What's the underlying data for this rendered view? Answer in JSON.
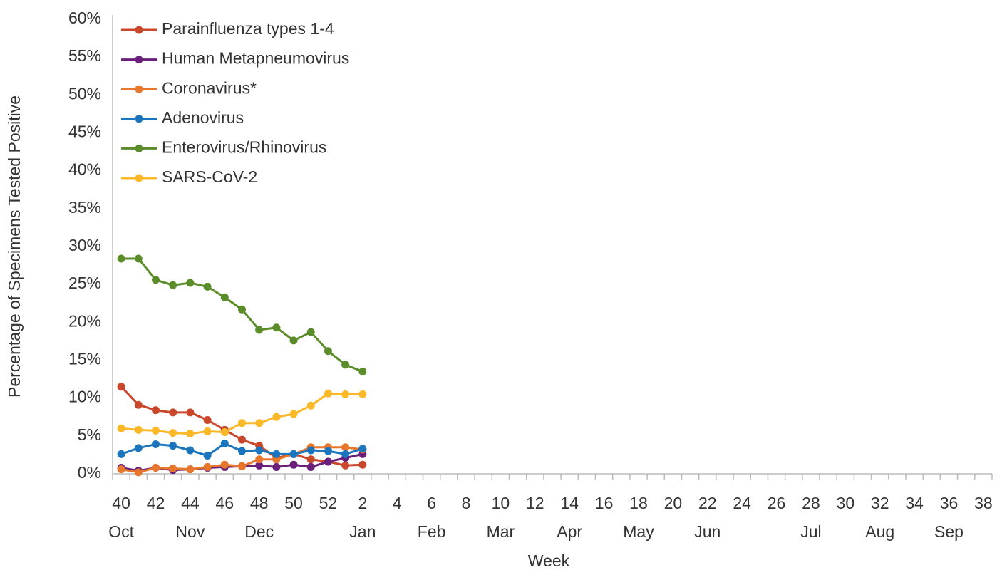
{
  "chart_data": {
    "type": "line",
    "y_axis_label": "Percentage of Specimens Tested Positive",
    "x_axis_label": "Week",
    "categories": [
      "40",
      null,
      "42",
      null,
      "44",
      null,
      "46",
      null,
      "48",
      null,
      "50",
      null,
      "52",
      null,
      "2",
      null,
      "4",
      null,
      "6",
      null,
      "8",
      null,
      "10",
      null,
      "12",
      null,
      "14",
      null,
      "16",
      null,
      "18",
      null,
      "20",
      null,
      "22",
      null,
      "24",
      null,
      "26",
      null,
      "28",
      null,
      "30",
      null,
      "32",
      null,
      "34",
      null,
      "36",
      null,
      "38"
    ],
    "month_categories": [
      "Oct",
      null,
      null,
      null,
      "Nov",
      null,
      null,
      null,
      "Dec",
      null,
      null,
      null,
      null,
      null,
      "Jan",
      null,
      null,
      null,
      "Feb",
      null,
      null,
      null,
      "Mar",
      null,
      null,
      null,
      "Apr",
      null,
      null,
      null,
      "May",
      null,
      null,
      null,
      "Jun",
      null,
      null,
      null,
      null,
      null,
      "Jul",
      null,
      null,
      null,
      "Aug",
      null,
      null,
      null,
      "Sep",
      null,
      null
    ],
    "series": [
      {
        "name": "Parainfluenza types 1-4",
        "color": "#c9472a",
        "values": [
          11.5,
          9.1,
          8.4,
          8.1,
          8.1,
          7.1,
          5.8,
          4.5,
          3.7,
          2.1,
          2.6,
          1.9,
          1.6,
          1.1,
          1.2,
          null,
          null,
          null,
          null,
          null,
          null,
          null,
          null,
          null,
          null,
          null,
          null,
          null,
          null,
          null,
          null,
          null,
          null,
          null,
          null,
          null,
          null,
          null,
          null,
          null,
          null,
          null,
          null,
          null,
          null,
          null,
          null,
          null,
          null,
          null,
          null
        ]
      },
      {
        "name": "Human Metapneumovirus",
        "color": "#6b1f7c",
        "values": [
          0.8,
          0.4,
          0.8,
          0.5,
          0.6,
          0.8,
          0.9,
          1.0,
          1.1,
          0.9,
          1.2,
          0.9,
          1.6,
          2.1,
          2.6,
          null,
          null,
          null,
          null,
          null,
          null,
          null,
          null,
          null,
          null,
          null,
          null,
          null,
          null,
          null,
          null,
          null,
          null,
          null,
          null,
          null,
          null,
          null,
          null,
          null,
          null,
          null,
          null,
          null,
          null,
          null,
          null,
          null,
          null,
          null,
          null
        ]
      },
      {
        "name": "Coronavirus*",
        "color": "#e8772e",
        "values": [
          0.6,
          0.2,
          0.8,
          0.7,
          0.6,
          0.9,
          1.2,
          1.0,
          1.9,
          1.9,
          2.6,
          3.5,
          3.5,
          3.5,
          3.2,
          null,
          null,
          null,
          null,
          null,
          null,
          null,
          null,
          null,
          null,
          null,
          null,
          null,
          null,
          null,
          null,
          null,
          null,
          null,
          null,
          null,
          null,
          null,
          null,
          null,
          null,
          null,
          null,
          null,
          null,
          null,
          null,
          null,
          null,
          null,
          null
        ]
      },
      {
        "name": "Adenovirus",
        "color": "#1a75bc",
        "values": [
          2.6,
          3.4,
          3.9,
          3.7,
          3.1,
          2.4,
          4.0,
          3.0,
          3.1,
          2.6,
          2.6,
          3.1,
          3.0,
          2.6,
          3.3,
          null,
          null,
          null,
          null,
          null,
          null,
          null,
          null,
          null,
          null,
          null,
          null,
          null,
          null,
          null,
          null,
          null,
          null,
          null,
          null,
          null,
          null,
          null,
          null,
          null,
          null,
          null,
          null,
          null,
          null,
          null,
          null,
          null,
          null,
          null,
          null
        ]
      },
      {
        "name": "Enterovirus/Rhinovirus",
        "color": "#5b8c2a",
        "values": [
          28.4,
          28.4,
          25.6,
          24.9,
          25.2,
          24.7,
          23.3,
          21.7,
          19.0,
          19.3,
          17.6,
          18.7,
          16.2,
          14.4,
          13.5,
          null,
          null,
          null,
          null,
          null,
          null,
          null,
          null,
          null,
          null,
          null,
          null,
          null,
          null,
          null,
          null,
          null,
          null,
          null,
          null,
          null,
          null,
          null,
          null,
          null,
          null,
          null,
          null,
          null,
          null,
          null,
          null,
          null,
          null,
          null,
          null
        ]
      },
      {
        "name": "SARS-CoV-2",
        "color": "#fbb829",
        "values": [
          6.0,
          5.8,
          5.7,
          5.4,
          5.3,
          5.6,
          5.5,
          6.7,
          6.7,
          7.5,
          7.9,
          9.0,
          10.6,
          10.5,
          10.5,
          null,
          null,
          null,
          null,
          null,
          null,
          null,
          null,
          null,
          null,
          null,
          null,
          null,
          null,
          null,
          null,
          null,
          null,
          null,
          null,
          null,
          null,
          null,
          null,
          null,
          null,
          null,
          null,
          null,
          null,
          null,
          null,
          null,
          null,
          null,
          null
        ]
      }
    ],
    "ylim": [
      0,
      60
    ],
    "yticks": [
      {
        "value": 0,
        "label": "0%"
      },
      {
        "value": 5,
        "label": "5%"
      },
      {
        "value": 10,
        "label": "10%"
      },
      {
        "value": 15,
        "label": "15%"
      },
      {
        "value": 20,
        "label": "20%"
      },
      {
        "value": 25,
        "label": "25%"
      },
      {
        "value": 30,
        "label": "30%"
      },
      {
        "value": 35,
        "label": "35%"
      },
      {
        "value": 40,
        "label": "40%"
      },
      {
        "value": 45,
        "label": "45%"
      },
      {
        "value": 50,
        "label": "50%"
      },
      {
        "value": 55,
        "label": "55%"
      },
      {
        "value": 60,
        "label": "60%"
      }
    ],
    "grid": false,
    "legend": "upper-left"
  }
}
